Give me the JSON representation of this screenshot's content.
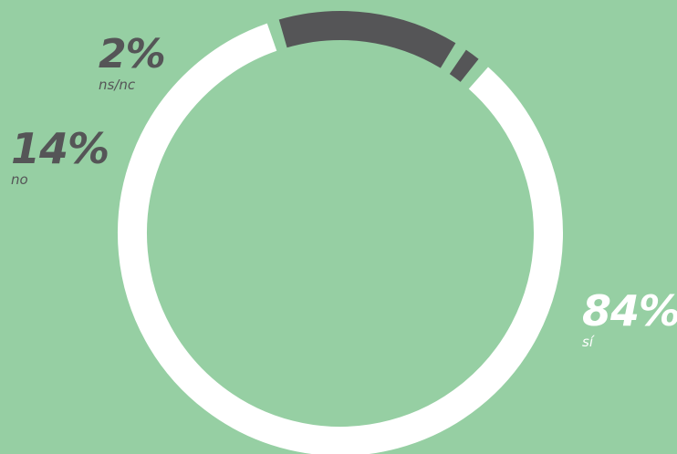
{
  "chart_data": {
    "type": "donut",
    "title": "",
    "slices": [
      {
        "label": "sí",
        "value": 84,
        "display": "84%",
        "color": "#ffffff"
      },
      {
        "label": "no",
        "value": 14,
        "display": "14%",
        "color": "#555557"
      },
      {
        "label": "ns/nc",
        "value": 2,
        "display": "2%",
        "color": "#555557"
      }
    ]
  },
  "colors": {
    "background": "#96cfa3",
    "positive": "#ffffff",
    "negative": "#555557"
  }
}
